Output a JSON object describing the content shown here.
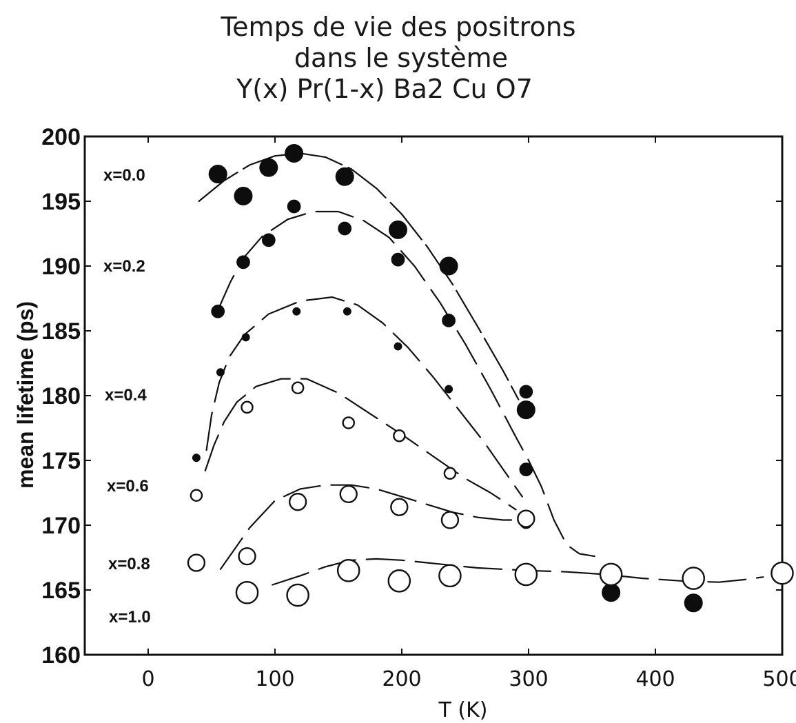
{
  "chart_data": {
    "type": "scatter",
    "title_lines": [
      "Temps de vie des positrons",
      "dans le système",
      "Y(x) Pr(1-x) Ba2 Cu O7"
    ],
    "xlabel": "T (K)",
    "ylabel": "mean lifetime (ps)",
    "xlim": [
      -50,
      500
    ],
    "ylim": [
      160,
      200
    ],
    "x_ticks": [
      0,
      100,
      200,
      300,
      400,
      500
    ],
    "y_ticks": [
      160,
      165,
      170,
      175,
      180,
      185,
      190,
      195,
      200
    ],
    "grid": false,
    "legend": "none",
    "series": [
      {
        "name": "x=0.0",
        "marker": "filled",
        "marker_scale": 1.0,
        "points": [
          [
            55,
            197.1
          ],
          [
            75,
            195.4
          ],
          [
            95,
            197.6
          ],
          [
            115,
            198.7
          ],
          [
            155,
            196.9
          ],
          [
            197,
            192.8
          ],
          [
            237,
            190.0
          ],
          [
            298,
            178.9
          ],
          [
            365,
            164.8
          ],
          [
            430,
            164.0
          ],
          [
            500,
            166.3
          ]
        ],
        "curve": [
          [
            40,
            195
          ],
          [
            60,
            196.6
          ],
          [
            80,
            197.8
          ],
          [
            100,
            198.5
          ],
          [
            120,
            198.7
          ],
          [
            140,
            198.4
          ],
          [
            160,
            197.5
          ],
          [
            180,
            196.0
          ],
          [
            200,
            194.0
          ],
          [
            220,
            191.5
          ],
          [
            240,
            188.6
          ],
          [
            260,
            185.3
          ],
          [
            280,
            181.9
          ],
          [
            292,
            179.7
          ]
        ]
      },
      {
        "name": "x=0.2",
        "marker": "filled",
        "marker_scale": 0.72,
        "points": [
          [
            55,
            186.5
          ],
          [
            75,
            190.3
          ],
          [
            95,
            192.0
          ],
          [
            115,
            194.6
          ],
          [
            155,
            192.9
          ],
          [
            197,
            190.5
          ],
          [
            237,
            185.8
          ],
          [
            298,
            180.3
          ],
          [
            298,
            174.3
          ]
        ],
        "curve": [
          [
            55,
            186.6
          ],
          [
            65,
            188.8
          ],
          [
            75,
            190.6
          ],
          [
            90,
            192.3
          ],
          [
            110,
            193.6
          ],
          [
            130,
            194.2
          ],
          [
            150,
            194.2
          ],
          [
            170,
            193.5
          ],
          [
            190,
            192.2
          ],
          [
            210,
            190.0
          ],
          [
            230,
            187.2
          ],
          [
            250,
            184.0
          ],
          [
            270,
            180.5
          ],
          [
            290,
            176.8
          ],
          [
            300,
            175.0
          ],
          [
            310,
            173.0
          ],
          [
            320,
            170.4
          ],
          [
            330,
            168.5
          ],
          [
            340,
            167.8
          ],
          [
            352,
            167.6
          ]
        ]
      },
      {
        "name": "x=0.4",
        "marker": "filled",
        "marker_scale": 0.42,
        "points": [
          [
            38,
            175.2
          ],
          [
            57,
            181.8
          ],
          [
            77,
            184.5
          ],
          [
            117,
            186.5
          ],
          [
            157,
            186.5
          ],
          [
            197,
            183.8
          ],
          [
            237,
            180.5
          ],
          [
            298,
            174.3
          ]
        ],
        "curve": [
          [
            46,
            175.8
          ],
          [
            50,
            178.5
          ],
          [
            56,
            181.0
          ],
          [
            64,
            183.0
          ],
          [
            76,
            184.7
          ],
          [
            95,
            186.3
          ],
          [
            120,
            187.3
          ],
          [
            145,
            187.6
          ],
          [
            165,
            187.0
          ],
          [
            185,
            185.6
          ],
          [
            205,
            183.7
          ],
          [
            225,
            181.4
          ],
          [
            245,
            178.9
          ],
          [
            265,
            176.4
          ],
          [
            285,
            173.6
          ],
          [
            295,
            172.2
          ]
        ]
      },
      {
        "name": "x=0.6",
        "marker": "open",
        "marker_scale": 0.62,
        "points": [
          [
            38,
            172.3
          ],
          [
            78,
            179.1
          ],
          [
            118,
            180.6
          ],
          [
            158,
            177.9
          ],
          [
            198,
            176.9
          ],
          [
            238,
            174.0
          ],
          [
            298,
            170.2
          ]
        ],
        "curve": [
          [
            45,
            174.2
          ],
          [
            52,
            176.2
          ],
          [
            60,
            178.0
          ],
          [
            70,
            179.5
          ],
          [
            85,
            180.7
          ],
          [
            105,
            181.3
          ],
          [
            125,
            181.3
          ],
          [
            150,
            180.2
          ],
          [
            175,
            178.6
          ],
          [
            200,
            177.0
          ],
          [
            225,
            175.3
          ],
          [
            250,
            173.6
          ],
          [
            270,
            172.5
          ],
          [
            290,
            171.2
          ]
        ]
      },
      {
        "name": "x=0.8",
        "marker": "open",
        "marker_scale": 0.92,
        "points": [
          [
            38,
            167.1
          ],
          [
            78,
            167.6
          ],
          [
            118,
            171.8
          ],
          [
            158,
            172.4
          ],
          [
            198,
            171.4
          ],
          [
            238,
            170.4
          ],
          [
            298,
            170.5
          ]
        ],
        "curve": [
          [
            57,
            166.6
          ],
          [
            80,
            169.8
          ],
          [
            100,
            171.9
          ],
          [
            120,
            172.8
          ],
          [
            140,
            173.1
          ],
          [
            160,
            173.1
          ],
          [
            180,
            172.8
          ],
          [
            200,
            172.2
          ],
          [
            220,
            171.6
          ],
          [
            240,
            171.0
          ],
          [
            260,
            170.6
          ],
          [
            280,
            170.4
          ],
          [
            297,
            170.4
          ]
        ]
      },
      {
        "name": "x=1.0",
        "marker": "open",
        "marker_scale": 1.2,
        "points": [
          [
            78,
            164.8
          ],
          [
            118,
            164.6
          ],
          [
            158,
            166.5
          ],
          [
            198,
            165.7
          ],
          [
            238,
            166.1
          ],
          [
            298,
            166.2
          ],
          [
            365,
            166.2
          ],
          [
            430,
            165.9
          ],
          [
            500,
            166.3
          ]
        ],
        "curve": [
          [
            98,
            165.4
          ],
          [
            120,
            166.1
          ],
          [
            140,
            166.8
          ],
          [
            160,
            167.3
          ],
          [
            180,
            167.4
          ],
          [
            200,
            167.3
          ],
          [
            220,
            167.1
          ],
          [
            240,
            166.9
          ],
          [
            260,
            166.7
          ],
          [
            280,
            166.6
          ],
          [
            300,
            166.5
          ],
          [
            330,
            166.4
          ],
          [
            360,
            166.2
          ],
          [
            390,
            165.9
          ],
          [
            420,
            165.7
          ],
          [
            450,
            165.6
          ],
          [
            470,
            165.8
          ],
          [
            485,
            166.0
          ]
        ]
      }
    ]
  }
}
